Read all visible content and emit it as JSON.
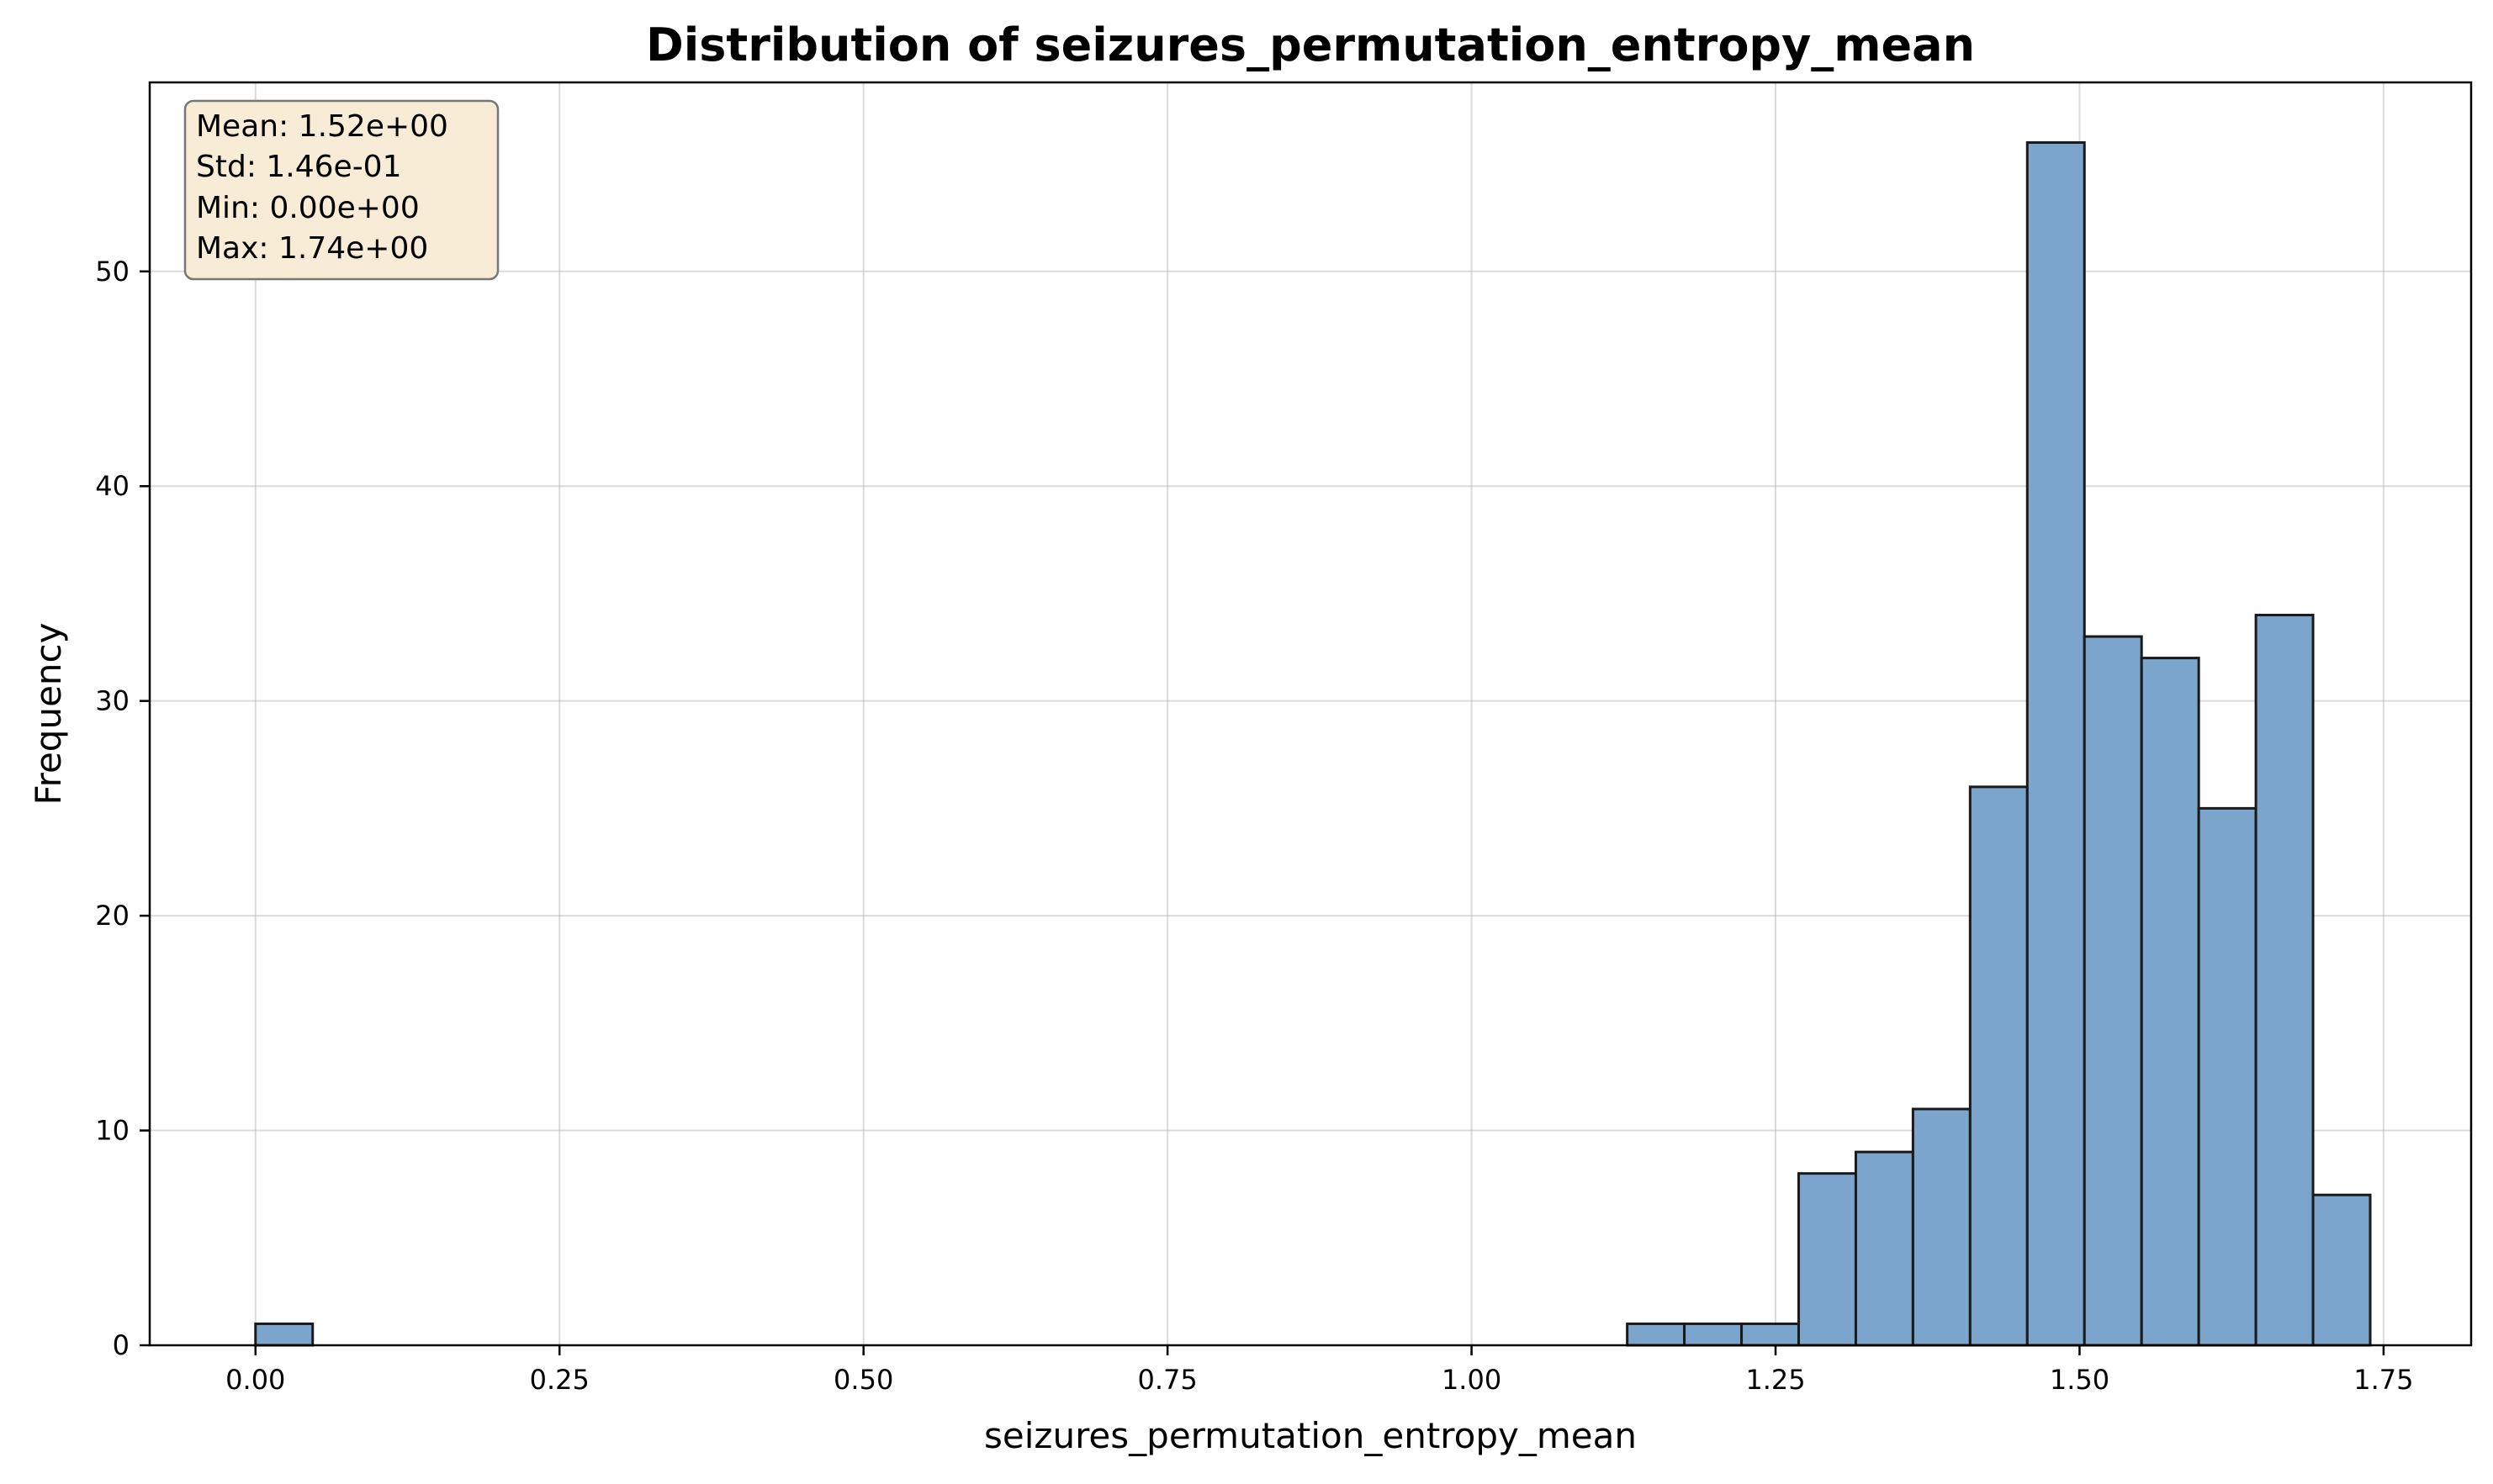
{
  "chart_data": {
    "type": "bar",
    "title": "Distribution of seizures_permutation_entropy_mean",
    "xlabel": "seizures_permutation_entropy_mean",
    "ylabel": "Frequency",
    "xlim": [
      -0.087,
      1.822
    ],
    "ylim": [
      0,
      58.8
    ],
    "x_ticks": [
      "0.00",
      "0.25",
      "0.50",
      "0.75",
      "1.00",
      "1.25",
      "1.50",
      "1.75"
    ],
    "x_tick_values": [
      0.0,
      0.25,
      0.5,
      0.75,
      1.0,
      1.25,
      1.5,
      1.75
    ],
    "y_ticks": [
      "0",
      "10",
      "20",
      "30",
      "40",
      "50"
    ],
    "y_tick_values": [
      0,
      10,
      20,
      30,
      40,
      50
    ],
    "bin_start": 0.0,
    "bin_width": 0.047,
    "frequencies": [
      1,
      0,
      0,
      0,
      0,
      0,
      0,
      0,
      0,
      0,
      0,
      0,
      0,
      0,
      0,
      0,
      0,
      0,
      0,
      0,
      0,
      0,
      0,
      0,
      1,
      1,
      1,
      8,
      9,
      11,
      26,
      56,
      33,
      32,
      25,
      34,
      7
    ],
    "grid": true,
    "bar_color": "#7ba5cc",
    "edge_color": "#1a1a1a",
    "stats_box": {
      "lines": [
        "Mean: 1.52e+00",
        "Std: 1.46e-01",
        "Min: 0.00e+00",
        "Max: 1.74e+00"
      ],
      "background": "#f8ecd6",
      "placement": "top-left"
    }
  }
}
